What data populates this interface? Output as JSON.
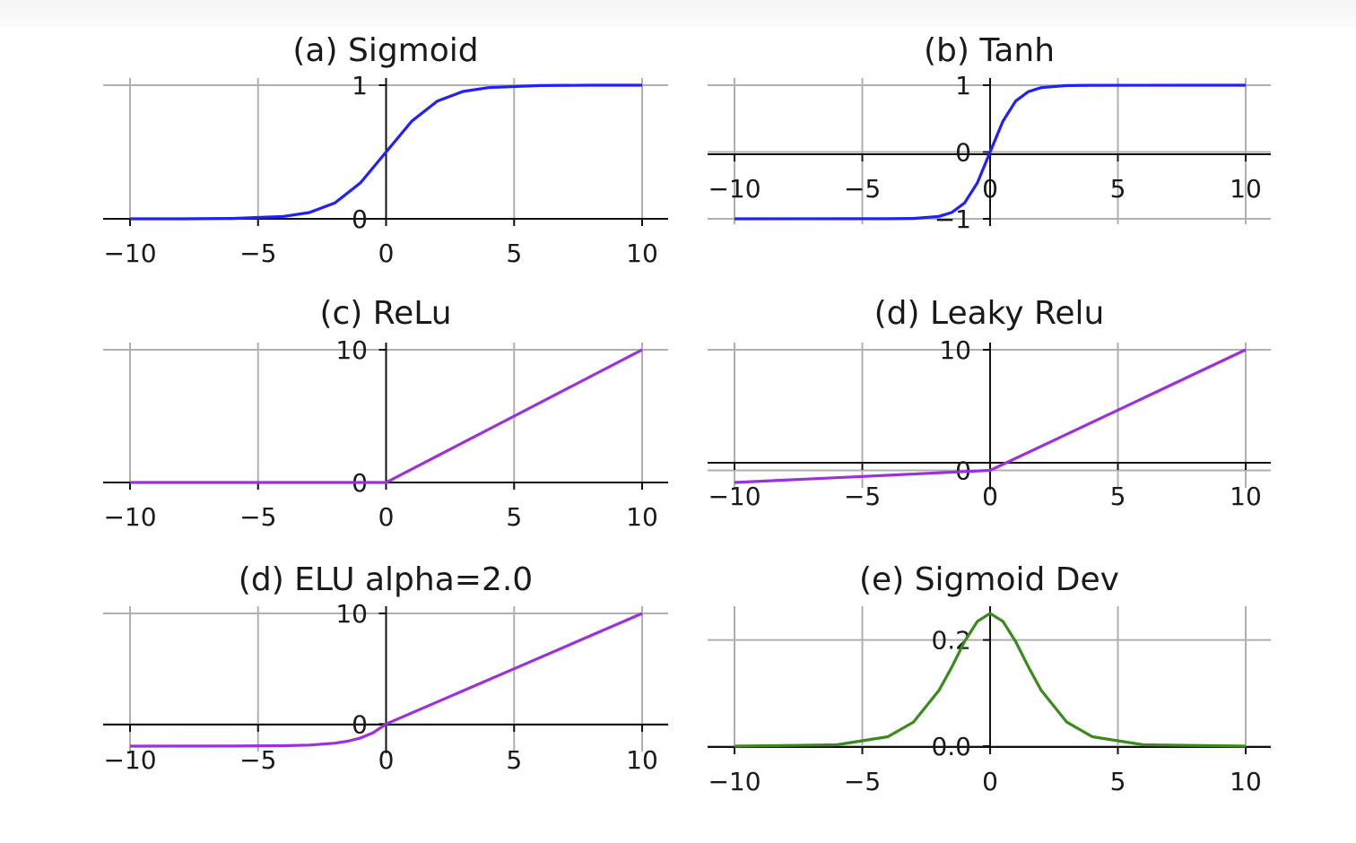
{
  "chart_data": [
    {
      "type": "line",
      "title": "(a) Sigmoid",
      "function": "sigmoid",
      "color": "#1f1fff",
      "xlim": [
        -10,
        10
      ],
      "ylim": [
        0,
        1
      ],
      "xticks": [
        -10,
        -5,
        0,
        5,
        10
      ],
      "xtick_labels": [
        "−10",
        "−5",
        "0",
        "5",
        "10"
      ],
      "yticks": [
        0,
        1
      ],
      "ytick_labels": [
        "0",
        "1"
      ],
      "grid": true,
      "x": [
        -10,
        -8,
        -6,
        -4,
        -3,
        -2,
        -1,
        0,
        1,
        2,
        3,
        4,
        6,
        8,
        10
      ],
      "y": [
        5e-05,
        0.0003,
        0.0025,
        0.018,
        0.047,
        0.119,
        0.269,
        0.5,
        0.731,
        0.881,
        0.953,
        0.982,
        0.9975,
        0.9997,
        0.99995
      ]
    },
    {
      "type": "line",
      "title": "(b) Tanh",
      "function": "tanh",
      "color": "#1f1fff",
      "xlim": [
        -10,
        10
      ],
      "ylim": [
        -1,
        1
      ],
      "xticks": [
        -10,
        -5,
        0,
        5,
        10
      ],
      "xtick_labels": [
        "−10",
        "−5",
        "0",
        "5",
        "10"
      ],
      "yticks": [
        -1,
        0,
        1
      ],
      "ytick_labels": [
        "−1",
        "0",
        "1"
      ],
      "grid": true,
      "x": [
        -10,
        -4,
        -3,
        -2,
        -1.5,
        -1,
        -0.5,
        0,
        0.5,
        1,
        1.5,
        2,
        3,
        4,
        10
      ],
      "y": [
        -1,
        -0.9993,
        -0.995,
        -0.964,
        -0.905,
        -0.762,
        -0.462,
        0,
        0.462,
        0.762,
        0.905,
        0.964,
        0.995,
        0.9993,
        1
      ]
    },
    {
      "type": "line",
      "title": "(c) ReLu",
      "function": "relu",
      "color": "#9b30e0",
      "xlim": [
        -10,
        10
      ],
      "ylim": [
        0,
        10
      ],
      "xticks": [
        -10,
        -5,
        0,
        5,
        10
      ],
      "xtick_labels": [
        "−10",
        "−5",
        "0",
        "5",
        "10"
      ],
      "yticks": [
        0,
        10
      ],
      "ytick_labels": [
        "0",
        "10"
      ],
      "grid": true,
      "x": [
        -10,
        -5,
        0,
        5,
        10
      ],
      "y": [
        0,
        0,
        0,
        5,
        10
      ]
    },
    {
      "type": "line",
      "title": "(d) Leaky Relu",
      "function": "leaky_relu",
      "color": "#9b30e0",
      "xlim": [
        -10,
        10
      ],
      "ylim": [
        -1,
        10
      ],
      "xticks": [
        -10,
        -5,
        0,
        5,
        10
      ],
      "xtick_labels": [
        "−10",
        "−5",
        "0",
        "5",
        "10"
      ],
      "yticks": [
        0,
        10
      ],
      "ytick_labels": [
        "0",
        "10"
      ],
      "grid": true,
      "x": [
        -10,
        -5,
        0,
        5,
        10
      ],
      "y": [
        -1,
        -0.5,
        0,
        5,
        10
      ]
    },
    {
      "type": "line",
      "title": "(d) ELU alpha=2.0",
      "function": "elu",
      "color": "#9b30e0",
      "xlim": [
        -10,
        10
      ],
      "ylim": [
        -2,
        10
      ],
      "xticks": [
        -10,
        -5,
        0,
        5,
        10
      ],
      "xtick_labels": [
        "−10",
        "−5",
        "0",
        "5",
        "10"
      ],
      "yticks": [
        0,
        10
      ],
      "ytick_labels": [
        "0",
        "10"
      ],
      "grid": true,
      "x": [
        -10,
        -6,
        -4,
        -3,
        -2,
        -1.5,
        -1,
        -0.5,
        0,
        5,
        10
      ],
      "y": [
        -2,
        -1.995,
        -1.963,
        -1.9,
        -1.729,
        -1.554,
        -1.264,
        -0.787,
        0,
        5,
        10
      ]
    },
    {
      "type": "line",
      "title": "(e) Sigmoid Dev",
      "function": "sigmoid_derivative",
      "color": "#3a8a1e",
      "xlim": [
        -10,
        10
      ],
      "ylim": [
        0,
        0.25
      ],
      "xticks": [
        -10,
        -5,
        0,
        5,
        10
      ],
      "xtick_labels": [
        "−10",
        "−5",
        "0",
        "5",
        "10"
      ],
      "yticks": [
        0,
        0.2
      ],
      "ytick_labels": [
        "0.0",
        "0.2"
      ],
      "grid": true,
      "x": [
        -10,
        -6,
        -4,
        -3,
        -2,
        -1.5,
        -1,
        -0.5,
        0,
        0.5,
        1,
        1.5,
        2,
        3,
        4,
        6,
        10
      ],
      "y": [
        5e-05,
        0.0025,
        0.0177,
        0.0452,
        0.105,
        0.149,
        0.197,
        0.235,
        0.25,
        0.235,
        0.197,
        0.149,
        0.105,
        0.0452,
        0.0177,
        0.0025,
        5e-05
      ]
    }
  ]
}
